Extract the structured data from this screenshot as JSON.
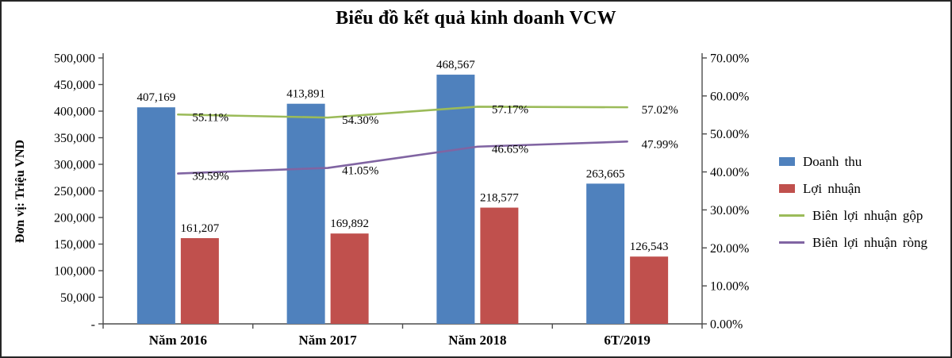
{
  "chart": {
    "title": "Biểu đồ kết quả kinh doanh VCW",
    "left_axis_label": "Đơn vị: Triệu VND"
  },
  "chart_data": {
    "type": "bar",
    "subtype": "combo-bar-line",
    "title": "Biểu đồ kết quả kinh doanh VCW",
    "categories": [
      "Năm 2016",
      "Năm 2017",
      "Năm 2018",
      "6T/2019"
    ],
    "bar_series": [
      {
        "name": "Doanh thu",
        "color": "#4f81bd",
        "axis": "left",
        "values": [
          407169,
          413891,
          468567,
          263665
        ],
        "labels": [
          "407,169",
          "413,891",
          "468,567",
          "263,665"
        ]
      },
      {
        "name": "Lợi nhuận",
        "color": "#c0504d",
        "axis": "left",
        "values": [
          161207,
          169892,
          218577,
          126543
        ],
        "labels": [
          "161,207",
          "169,892",
          "218,577",
          "126,543"
        ]
      }
    ],
    "line_series": [
      {
        "name": "Biên lợi nhuận gộp",
        "color": "#9bbb59",
        "axis": "right",
        "values": [
          55.11,
          54.3,
          57.17,
          57.02
        ],
        "labels": [
          "55.11%",
          "54.30%",
          "57.17%",
          "57.02%"
        ]
      },
      {
        "name": "Biên lợi nhuận ròng",
        "color": "#8064a2",
        "axis": "right",
        "values": [
          39.59,
          41.05,
          46.65,
          47.99
        ],
        "labels": [
          "39.59%",
          "41.05%",
          "46.65%",
          "47.99%"
        ]
      }
    ],
    "left_axis": {
      "label": "Đơn vị: Triệu VND",
      "min": 0,
      "max": 500000,
      "step": 50000,
      "tick_labels": [
        "-",
        "50,000",
        "100,000",
        "150,000",
        "200,000",
        "250,000",
        "300,000",
        "350,000",
        "400,000",
        "450,000",
        "500,000"
      ]
    },
    "right_axis": {
      "min": 0,
      "max": 70,
      "step": 10,
      "tick_labels": [
        "0.00%",
        "10.00%",
        "20.00%",
        "30.00%",
        "40.00%",
        "50.00%",
        "60.00%",
        "70.00%"
      ]
    },
    "legend_position": "right",
    "grid": false
  },
  "legend": {
    "items": [
      {
        "label": "Doanh thu",
        "color": "#4f81bd",
        "marker": "square"
      },
      {
        "label": "Lợi nhuận",
        "color": "#c0504d",
        "marker": "square"
      },
      {
        "label": "Biên lợi nhuận gộp",
        "color": "#9bbb59",
        "marker": "line"
      },
      {
        "label": "Biên lợi nhuận ròng",
        "color": "#8064a2",
        "marker": "line"
      }
    ]
  }
}
